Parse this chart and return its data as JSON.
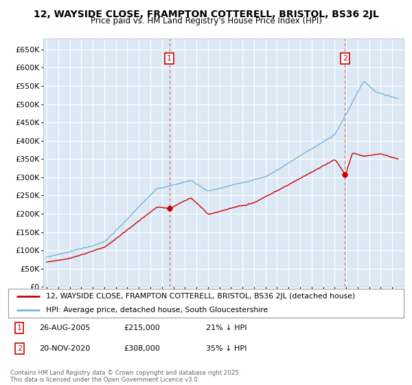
{
  "title": "12, WAYSIDE CLOSE, FRAMPTON COTTERELL, BRISTOL, BS36 2JL",
  "subtitle": "Price paid vs. HM Land Registry's House Price Index (HPI)",
  "bg_color": "#ffffff",
  "plot_bg_color": "#dce9f5",
  "grid_color": "#ffffff",
  "hpi_color": "#7ab3d9",
  "price_color": "#cc0000",
  "marker1_x": 2005.65,
  "marker2_x": 2020.9,
  "marker1_price": 215000,
  "marker2_price": 308000,
  "ylim_min": 0,
  "ylim_max": 680000,
  "ytick_step": 50000,
  "footnote": "Contains HM Land Registry data © Crown copyright and database right 2025.\nThis data is licensed under the Open Government Licence v3.0.",
  "legend_line1": "12, WAYSIDE CLOSE, FRAMPTON COTTERELL, BRISTOL, BS36 2JL (detached house)",
  "legend_line2": "HPI: Average price, detached house, South Gloucestershire",
  "annotation1_date": "26-AUG-2005",
  "annotation1_price": "£215,000",
  "annotation1_hpi": "21% ↓ HPI",
  "annotation2_date": "20-NOV-2020",
  "annotation2_price": "£308,000",
  "annotation2_hpi": "35% ↓ HPI"
}
